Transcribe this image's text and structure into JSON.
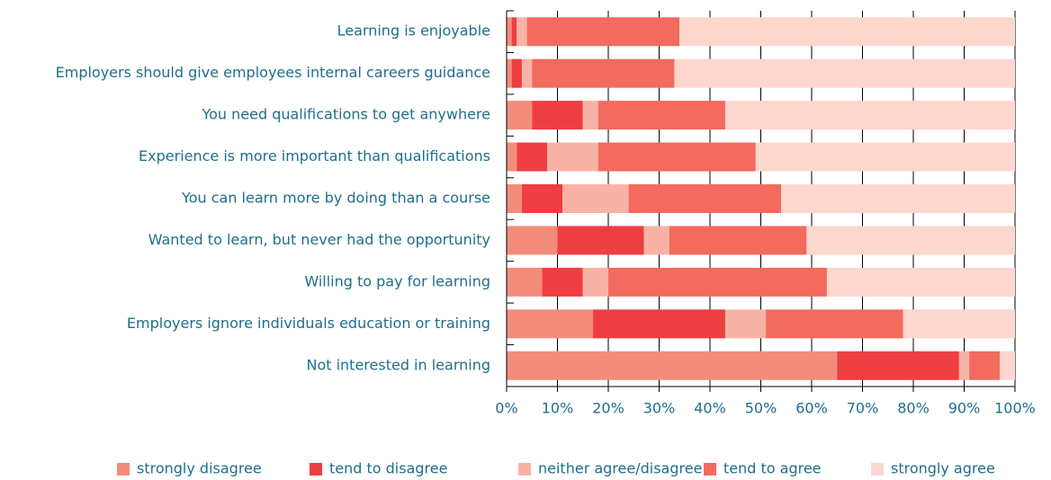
{
  "chart_data": {
    "type": "stacked-barh",
    "categories": [
      "Learning is enjoyable",
      "Employers should give employees internal careers guidance",
      "You need qualifications to get anywhere",
      "Experience is more important than qualifications",
      "You can learn more by doing than a course",
      "Wanted to learn, but never had the opportunity",
      "Willing to pay for learning",
      "Employers ignore individuals education or training",
      "Not interested in learning"
    ],
    "series": [
      {
        "name": "strongly disagree",
        "color": "#f48c7c",
        "values": [
          1,
          1,
          5,
          2,
          3,
          10,
          7,
          17,
          65
        ]
      },
      {
        "name": "tend to disagree",
        "color": "#ee3e42",
        "values": [
          1,
          2,
          10,
          6,
          8,
          17,
          8,
          26,
          24
        ]
      },
      {
        "name": "neither agree/disagree",
        "color": "#f9b3a6",
        "values": [
          2,
          2,
          3,
          10,
          13,
          5,
          5,
          8,
          2
        ]
      },
      {
        "name": "tend to agree",
        "color": "#f26b5e",
        "values": [
          30,
          28,
          25,
          31,
          30,
          27,
          43,
          27,
          6
        ]
      },
      {
        "name": "strongly agree",
        "color": "#fdd7ce",
        "values": [
          66,
          67,
          57,
          51,
          46,
          41,
          37,
          22,
          3
        ]
      }
    ],
    "xlim": [
      0,
      100
    ],
    "xticks": [
      {
        "value": 0,
        "label": "0%"
      },
      {
        "value": 10,
        "label": "10%"
      },
      {
        "value": 20,
        "label": "20%"
      },
      {
        "value": 30,
        "label": "30%"
      },
      {
        "value": 40,
        "label": "40%"
      },
      {
        "value": 50,
        "label": "50%"
      },
      {
        "value": 60,
        "label": "60%"
      },
      {
        "value": 70,
        "label": "70%"
      },
      {
        "value": 80,
        "label": "80%"
      },
      {
        "value": 90,
        "label": "90%"
      },
      {
        "value": 100,
        "label": "100%"
      }
    ],
    "grid": true,
    "legend": "bottom"
  }
}
